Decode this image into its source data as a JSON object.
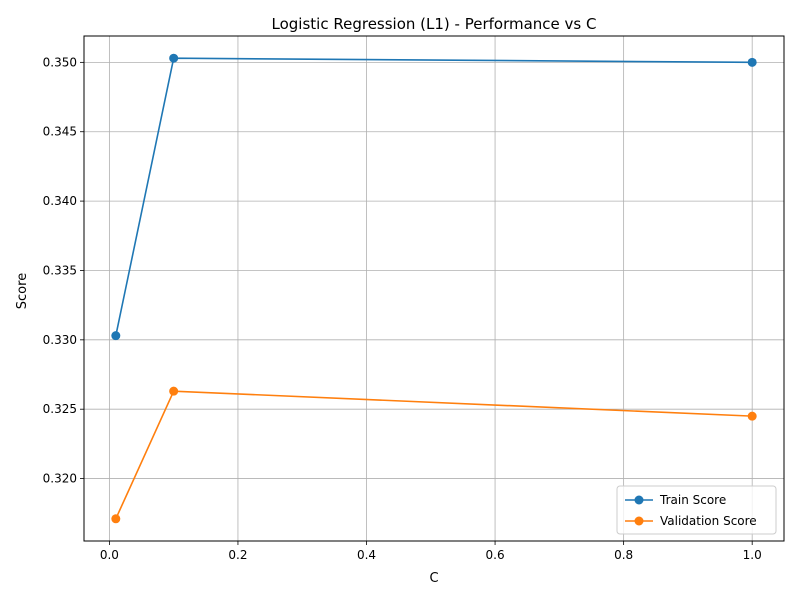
{
  "chart_data": {
    "type": "line",
    "title": "Logistic Regression (L1) - Performance vs C",
    "xlabel": "C",
    "ylabel": "Score",
    "x": [
      0.01,
      0.1,
      1.0
    ],
    "series": [
      {
        "name": "Train Score",
        "values": [
          0.3303,
          0.3503,
          0.35
        ],
        "color": "#1f77b4"
      },
      {
        "name": "Validation Score",
        "values": [
          0.3171,
          0.3263,
          0.3245
        ],
        "color": "#ff7f0e"
      }
    ],
    "xlim": [
      -0.0395,
      1.0495
    ],
    "ylim": [
      0.3155,
      0.3519
    ],
    "xticks": [
      0.0,
      0.2,
      0.4,
      0.6,
      0.8,
      1.0
    ],
    "xtick_labels": [
      "0.0",
      "0.2",
      "0.4",
      "0.6",
      "0.8",
      "1.0"
    ],
    "yticks": [
      0.32,
      0.325,
      0.33,
      0.335,
      0.34,
      0.345,
      0.35
    ],
    "ytick_labels": [
      "0.320",
      "0.325",
      "0.330",
      "0.335",
      "0.340",
      "0.345",
      "0.350"
    ],
    "grid": true,
    "legend_position": "bottom-right",
    "marker": "circle"
  }
}
